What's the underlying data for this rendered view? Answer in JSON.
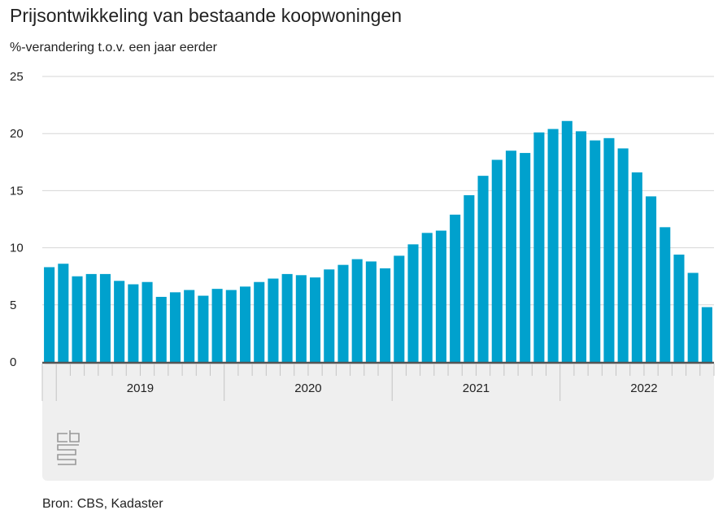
{
  "title": "Prijsontwikkeling van bestaande koopwoningen",
  "subtitle": "%-verandering t.o.v. een jaar eerder",
  "source": "Bron: CBS, Kadaster",
  "logo": "CBS",
  "chart_data": {
    "type": "bar",
    "ylabel": "%-verandering t.o.v. een jaar eerder",
    "ylim": [
      0,
      25
    ],
    "yticks": [
      0,
      5,
      10,
      15,
      20,
      25
    ],
    "grid": true,
    "bar_color": "#00a1cd",
    "year_labels": [
      "2019",
      "2020",
      "2021",
      "2022"
    ],
    "categories": [
      "2018-12",
      "2019-01",
      "2019-02",
      "2019-03",
      "2019-04",
      "2019-05",
      "2019-06",
      "2019-07",
      "2019-08",
      "2019-09",
      "2019-10",
      "2019-11",
      "2019-12",
      "2020-01",
      "2020-02",
      "2020-03",
      "2020-04",
      "2020-05",
      "2020-06",
      "2020-07",
      "2020-08",
      "2020-09",
      "2020-10",
      "2020-11",
      "2020-12",
      "2021-01",
      "2021-02",
      "2021-03",
      "2021-04",
      "2021-05",
      "2021-06",
      "2021-07",
      "2021-08",
      "2021-09",
      "2021-10",
      "2021-11",
      "2021-12",
      "2022-01",
      "2022-02",
      "2022-03",
      "2022-04",
      "2022-05",
      "2022-06",
      "2022-07",
      "2022-08",
      "2022-09",
      "2022-10",
      "2022-11"
    ],
    "values": [
      8.3,
      8.6,
      7.5,
      7.7,
      7.7,
      7.1,
      6.8,
      7.0,
      5.7,
      6.1,
      6.3,
      5.8,
      6.4,
      6.3,
      6.6,
      7.0,
      7.3,
      7.7,
      7.6,
      7.4,
      8.1,
      8.5,
      9.0,
      8.8,
      8.2,
      9.3,
      10.3,
      11.3,
      11.5,
      12.9,
      14.6,
      16.3,
      17.7,
      18.5,
      18.3,
      20.1,
      20.4,
      21.1,
      20.2,
      19.4,
      19.6,
      18.7,
      16.6,
      14.5,
      11.8,
      9.4,
      7.8,
      4.8
    ]
  }
}
